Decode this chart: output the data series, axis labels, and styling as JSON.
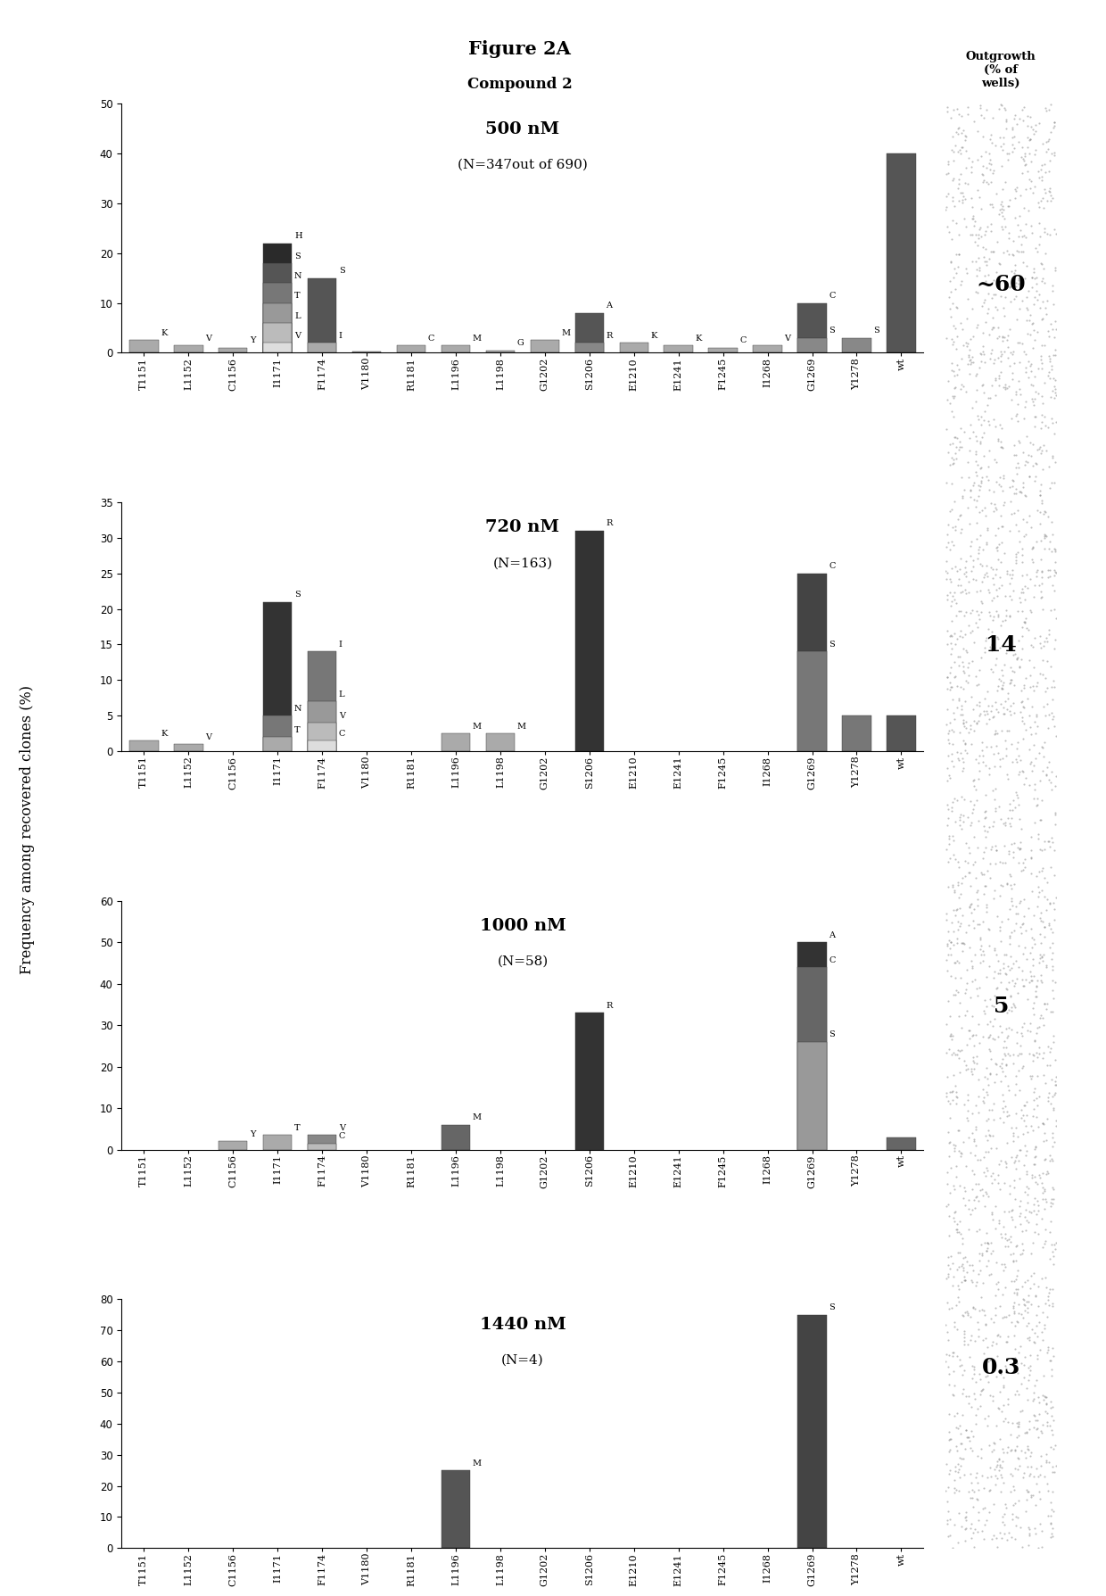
{
  "figure_title": "Figure 2A",
  "compound_label": "Compound 2",
  "ylabel": "Frequency among recovered clones (%)",
  "outgrowth_header": "Outgrowth\n(% of\nwells)",
  "categories": [
    "T1151",
    "L1152",
    "C1156",
    "I1171",
    "F1174",
    "V1180",
    "R1181",
    "L1196",
    "L1198",
    "G1202",
    "S1206",
    "E1210",
    "E1241",
    "F1245",
    "I1268",
    "G1269",
    "Y1278",
    "wt"
  ],
  "panels": [
    {
      "title": "500 nM",
      "subtitle": "(N=347out of 690)",
      "ylim": [
        0,
        50
      ],
      "yticks": [
        0,
        10,
        20,
        30,
        40,
        50
      ],
      "outgrowth": "~60",
      "bars": {
        "T1151": [
          {
            "val": 2.5,
            "color": "#aaaaaa",
            "letter": "K"
          }
        ],
        "L1152": [
          {
            "val": 1.5,
            "color": "#aaaaaa",
            "letter": "V"
          }
        ],
        "C1156": [
          {
            "val": 1.0,
            "color": "#aaaaaa",
            "letter": "Y"
          }
        ],
        "I1171": [
          {
            "val": 22.0,
            "color": "#2a2a2a",
            "letter": "H"
          },
          {
            "val": 18.0,
            "color": "#555555",
            "letter": "S"
          },
          {
            "val": 14.0,
            "color": "#777777",
            "letter": "N"
          },
          {
            "val": 10.0,
            "color": "#999999",
            "letter": "T"
          },
          {
            "val": 6.0,
            "color": "#bbbbbb",
            "letter": "L"
          },
          {
            "val": 2.0,
            "color": "#dddddd",
            "letter": "V"
          }
        ],
        "F1174": [
          {
            "val": 15.0,
            "color": "#555555",
            "letter": "S"
          },
          {
            "val": 2.0,
            "color": "#aaaaaa",
            "letter": "I"
          }
        ],
        "V1180": [
          {
            "val": 0.3,
            "color": "#aaaaaa",
            "letter": ""
          }
        ],
        "R1181": [
          {
            "val": 1.5,
            "color": "#aaaaaa",
            "letter": "C"
          }
        ],
        "L1196": [
          {
            "val": 1.5,
            "color": "#aaaaaa",
            "letter": "M"
          }
        ],
        "L1198": [
          {
            "val": 0.5,
            "color": "#aaaaaa",
            "letter": "G"
          }
        ],
        "G1202": [
          {
            "val": 2.5,
            "color": "#aaaaaa",
            "letter": "M"
          }
        ],
        "S1206": [
          {
            "val": 8.0,
            "color": "#555555",
            "letter": "A"
          },
          {
            "val": 2.0,
            "color": "#888888",
            "letter": "R"
          }
        ],
        "E1210": [
          {
            "val": 2.0,
            "color": "#aaaaaa",
            "letter": "K"
          }
        ],
        "E1241": [
          {
            "val": 1.5,
            "color": "#aaaaaa",
            "letter": "K"
          }
        ],
        "F1245": [
          {
            "val": 1.0,
            "color": "#aaaaaa",
            "letter": "C"
          }
        ],
        "I1268": [
          {
            "val": 1.5,
            "color": "#aaaaaa",
            "letter": "V"
          }
        ],
        "G1269": [
          {
            "val": 10.0,
            "color": "#555555",
            "letter": "C"
          },
          {
            "val": 3.0,
            "color": "#888888",
            "letter": "S"
          }
        ],
        "Y1278": [
          {
            "val": 3.0,
            "color": "#888888",
            "letter": "S"
          }
        ],
        "wt": [
          {
            "val": 40.0,
            "color": "#555555",
            "letter": ""
          }
        ]
      }
    },
    {
      "title": "720 nM",
      "subtitle": "(N=163)",
      "ylim": [
        0,
        35
      ],
      "yticks": [
        0,
        5,
        10,
        15,
        20,
        25,
        30,
        35
      ],
      "outgrowth": "14",
      "bars": {
        "T1151": [
          {
            "val": 1.5,
            "color": "#aaaaaa",
            "letter": "K"
          }
        ],
        "L1152": [
          {
            "val": 1.0,
            "color": "#aaaaaa",
            "letter": "V"
          }
        ],
        "C1156": [
          {
            "val": 0.0,
            "color": "#aaaaaa",
            "letter": ""
          }
        ],
        "I1171": [
          {
            "val": 21.0,
            "color": "#333333",
            "letter": "S"
          },
          {
            "val": 5.0,
            "color": "#777777",
            "letter": "N"
          },
          {
            "val": 2.0,
            "color": "#aaaaaa",
            "letter": "T"
          }
        ],
        "F1174": [
          {
            "val": 14.0,
            "color": "#777777",
            "letter": "I"
          },
          {
            "val": 7.0,
            "color": "#999999",
            "letter": "L"
          },
          {
            "val": 4.0,
            "color": "#bbbbbb",
            "letter": "V"
          },
          {
            "val": 1.5,
            "color": "#dddddd",
            "letter": "C"
          }
        ],
        "V1180": [
          {
            "val": 0.0,
            "color": "#aaaaaa",
            "letter": ""
          }
        ],
        "R1181": [
          {
            "val": 0.0,
            "color": "#aaaaaa",
            "letter": ""
          }
        ],
        "L1196": [
          {
            "val": 2.5,
            "color": "#aaaaaa",
            "letter": "M"
          }
        ],
        "L1198": [
          {
            "val": 2.5,
            "color": "#aaaaaa",
            "letter": "M"
          }
        ],
        "G1202": [
          {
            "val": 0.0,
            "color": "#aaaaaa",
            "letter": ""
          }
        ],
        "S1206": [
          {
            "val": 31.0,
            "color": "#333333",
            "letter": "R"
          }
        ],
        "E1210": [
          {
            "val": 0.0,
            "color": "#aaaaaa",
            "letter": ""
          }
        ],
        "E1241": [
          {
            "val": 0.0,
            "color": "#aaaaaa",
            "letter": ""
          }
        ],
        "F1245": [
          {
            "val": 0.0,
            "color": "#aaaaaa",
            "letter": ""
          }
        ],
        "I1268": [
          {
            "val": 0.0,
            "color": "#aaaaaa",
            "letter": ""
          }
        ],
        "G1269": [
          {
            "val": 25.0,
            "color": "#444444",
            "letter": "C"
          },
          {
            "val": 14.0,
            "color": "#777777",
            "letter": "S"
          }
        ],
        "Y1278": [
          {
            "val": 5.0,
            "color": "#777777",
            "letter": ""
          }
        ],
        "wt": [
          {
            "val": 5.0,
            "color": "#555555",
            "letter": ""
          }
        ]
      }
    },
    {
      "title": "1000 nM",
      "subtitle": "(N=58)",
      "ylim": [
        0,
        60
      ],
      "yticks": [
        0,
        10,
        20,
        30,
        40,
        50,
        60
      ],
      "outgrowth": "5",
      "bars": {
        "T1151": [
          {
            "val": 0.0,
            "color": "#aaaaaa",
            "letter": ""
          }
        ],
        "L1152": [
          {
            "val": 0.0,
            "color": "#aaaaaa",
            "letter": ""
          }
        ],
        "C1156": [
          {
            "val": 2.0,
            "color": "#aaaaaa",
            "letter": "Y"
          }
        ],
        "I1171": [
          {
            "val": 3.5,
            "color": "#aaaaaa",
            "letter": "T"
          }
        ],
        "F1174": [
          {
            "val": 3.5,
            "color": "#888888",
            "letter": "V"
          },
          {
            "val": 1.5,
            "color": "#bbbbbb",
            "letter": "C"
          }
        ],
        "V1180": [
          {
            "val": 0.0,
            "color": "#aaaaaa",
            "letter": ""
          }
        ],
        "R1181": [
          {
            "val": 0.0,
            "color": "#aaaaaa",
            "letter": ""
          }
        ],
        "L1196": [
          {
            "val": 6.0,
            "color": "#666666",
            "letter": "M"
          }
        ],
        "L1198": [
          {
            "val": 0.0,
            "color": "#aaaaaa",
            "letter": ""
          }
        ],
        "G1202": [
          {
            "val": 0.0,
            "color": "#aaaaaa",
            "letter": ""
          }
        ],
        "S1206": [
          {
            "val": 33.0,
            "color": "#333333",
            "letter": "R"
          }
        ],
        "E1210": [
          {
            "val": 0.0,
            "color": "#aaaaaa",
            "letter": ""
          }
        ],
        "E1241": [
          {
            "val": 0.0,
            "color": "#aaaaaa",
            "letter": ""
          }
        ],
        "F1245": [
          {
            "val": 0.0,
            "color": "#aaaaaa",
            "letter": ""
          }
        ],
        "I1268": [
          {
            "val": 0.0,
            "color": "#aaaaaa",
            "letter": ""
          }
        ],
        "G1269": [
          {
            "val": 50.0,
            "color": "#333333",
            "letter": "A"
          },
          {
            "val": 44.0,
            "color": "#666666",
            "letter": "C"
          },
          {
            "val": 26.0,
            "color": "#999999",
            "letter": "S"
          }
        ],
        "Y1278": [
          {
            "val": 0.0,
            "color": "#aaaaaa",
            "letter": ""
          }
        ],
        "wt": [
          {
            "val": 3.0,
            "color": "#666666",
            "letter": ""
          }
        ]
      }
    },
    {
      "title": "1440 nM",
      "subtitle": "(N=4)",
      "ylim": [
        0,
        80
      ],
      "yticks": [
        0,
        10,
        20,
        30,
        40,
        50,
        60,
        70,
        80
      ],
      "outgrowth": "0.3",
      "bars": {
        "T1151": [
          {
            "val": 0.0,
            "color": "#aaaaaa",
            "letter": ""
          }
        ],
        "L1152": [
          {
            "val": 0.0,
            "color": "#aaaaaa",
            "letter": ""
          }
        ],
        "C1156": [
          {
            "val": 0.0,
            "color": "#aaaaaa",
            "letter": ""
          }
        ],
        "I1171": [
          {
            "val": 0.0,
            "color": "#aaaaaa",
            "letter": ""
          }
        ],
        "F1174": [
          {
            "val": 0.0,
            "color": "#aaaaaa",
            "letter": ""
          }
        ],
        "V1180": [
          {
            "val": 0.0,
            "color": "#aaaaaa",
            "letter": ""
          }
        ],
        "R1181": [
          {
            "val": 0.0,
            "color": "#aaaaaa",
            "letter": ""
          }
        ],
        "L1196": [
          {
            "val": 25.0,
            "color": "#555555",
            "letter": "M"
          }
        ],
        "L1198": [
          {
            "val": 0.0,
            "color": "#aaaaaa",
            "letter": ""
          }
        ],
        "G1202": [
          {
            "val": 0.0,
            "color": "#aaaaaa",
            "letter": ""
          }
        ],
        "S1206": [
          {
            "val": 0.0,
            "color": "#aaaaaa",
            "letter": ""
          }
        ],
        "E1210": [
          {
            "val": 0.0,
            "color": "#aaaaaa",
            "letter": ""
          }
        ],
        "E1241": [
          {
            "val": 0.0,
            "color": "#aaaaaa",
            "letter": ""
          }
        ],
        "F1245": [
          {
            "val": 0.0,
            "color": "#aaaaaa",
            "letter": ""
          }
        ],
        "I1268": [
          {
            "val": 0.0,
            "color": "#aaaaaa",
            "letter": ""
          }
        ],
        "G1269": [
          {
            "val": 75.0,
            "color": "#444444",
            "letter": "S"
          }
        ],
        "Y1278": [
          {
            "val": 0.0,
            "color": "#aaaaaa",
            "letter": ""
          }
        ],
        "wt": [
          {
            "val": 0.0,
            "color": "#aaaaaa",
            "letter": ""
          }
        ]
      }
    }
  ]
}
